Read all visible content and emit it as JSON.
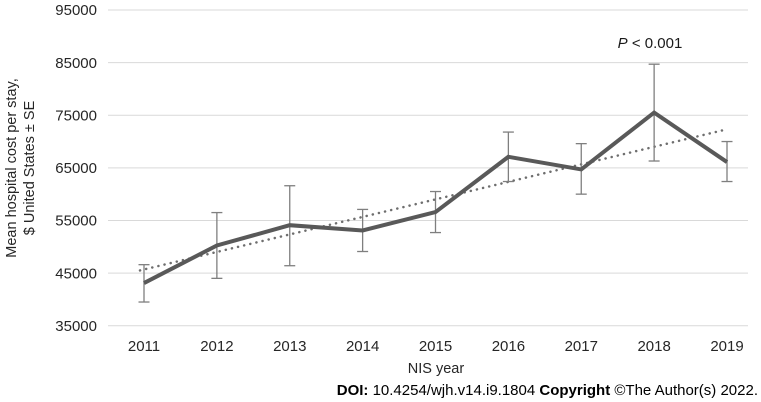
{
  "chart_data": {
    "type": "line",
    "title": "",
    "xlabel": "NIS year",
    "ylabel_line1": "Mean hospital cost per stay,",
    "ylabel_line2": "$ United States ± SE",
    "annotation_p": "P",
    "annotation_rest": " < 0.001",
    "categories": [
      "2011",
      "2012",
      "2013",
      "2014",
      "2015",
      "2016",
      "2017",
      "2018",
      "2019"
    ],
    "series": [
      {
        "name": "Mean hospital cost per stay (± SE)",
        "values": [
          43100,
          50250,
          54100,
          53100,
          56600,
          67100,
          64700,
          75500,
          66100
        ],
        "upper": [
          46600,
          56500,
          61600,
          57100,
          60500,
          71800,
          69600,
          84700,
          70000
        ],
        "lower": [
          39500,
          44000,
          46400,
          49100,
          52700,
          62400,
          60000,
          66300,
          62400
        ]
      }
    ],
    "trend": {
      "name": "linear-trend",
      "start_value": 45500,
      "end_value": 72100
    },
    "ylim": [
      35000,
      95000
    ],
    "yticks": [
      35000,
      45000,
      55000,
      65000,
      75000,
      85000,
      95000
    ],
    "grid": true,
    "legend": "none",
    "colors": {
      "line": "#595959",
      "error_bar": "#7f7f7f",
      "trend": "#6e6e6e",
      "gridline": "#d9d9d9",
      "text": "#262626"
    }
  },
  "footer": {
    "doi_label": "DOI:",
    "doi_value": " 10.4254/wjh.v14.i9.1804 ",
    "copyright_label": "Copyright",
    "copyright_value": " ©The Author(s) 2022."
  }
}
